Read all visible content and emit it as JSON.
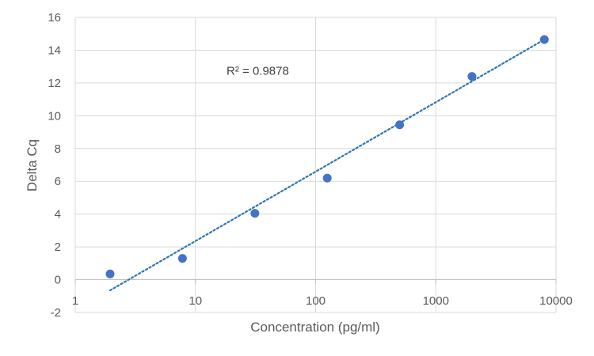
{
  "chart_data": {
    "type": "scatter",
    "title": "",
    "xlabel": "Concentration (pg/ml)",
    "ylabel": "Delta Cq",
    "xscale": "log",
    "xlim": [
      1,
      10000
    ],
    "ylim": [
      -2,
      16
    ],
    "x_ticks": [
      1,
      10,
      100,
      1000,
      10000
    ],
    "x_tick_labels": [
      "1",
      "10",
      "100",
      "1000",
      "10000"
    ],
    "y_ticks": [
      -2,
      0,
      2,
      4,
      6,
      8,
      10,
      12,
      14,
      16
    ],
    "y_tick_labels": [
      "-2",
      "0",
      "2",
      "4",
      "6",
      "8",
      "10",
      "12",
      "14",
      "16"
    ],
    "grid": true,
    "legend": "none",
    "marker_color": "#4472C4",
    "trendline_color": "#2E75B6",
    "points": [
      {
        "x": 1.95,
        "y": 0.35
      },
      {
        "x": 7.8,
        "y": 1.3
      },
      {
        "x": 31.25,
        "y": 4.05
      },
      {
        "x": 125,
        "y": 6.2
      },
      {
        "x": 500,
        "y": 9.45
      },
      {
        "x": 2000,
        "y": 12.4
      },
      {
        "x": 8000,
        "y": 14.65
      }
    ],
    "trendline": {
      "type": "logarithmic",
      "x_start": 1.95,
      "y_start": -0.65,
      "x_end": 8000,
      "y_end": 14.65
    },
    "annotation": {
      "text": "R² = 0.9878",
      "x": 33,
      "y": 12.75
    }
  }
}
